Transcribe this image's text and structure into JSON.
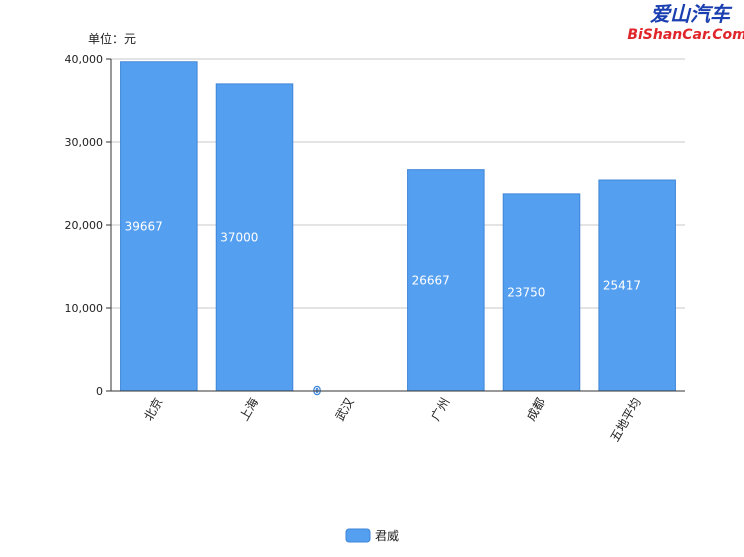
{
  "chart_data": {
    "type": "bar",
    "unit_label": "单位：元",
    "categories": [
      "北京",
      "上海",
      "武汉",
      "广州",
      "成都",
      "五地平均"
    ],
    "series": [
      {
        "name": "君威",
        "values": [
          39667,
          37000,
          0,
          26667,
          23750,
          25417
        ]
      }
    ],
    "data_labels": [
      "39667",
      "37000",
      "0",
      "26667",
      "23750",
      "25417"
    ],
    "ylim": [
      0,
      40000
    ],
    "yticks": [
      0,
      10000,
      20000,
      30000,
      40000
    ],
    "ytick_labels": [
      "0",
      "10,000",
      "20,000",
      "30,000",
      "40,000"
    ],
    "grid": true,
    "legend_position": "bottom-center",
    "bar_color": "#559ff0",
    "bar_edge_color": "#3f86d9"
  },
  "watermark": {
    "cn": "爱山汽车",
    "en": "BiShanCar.Com"
  }
}
